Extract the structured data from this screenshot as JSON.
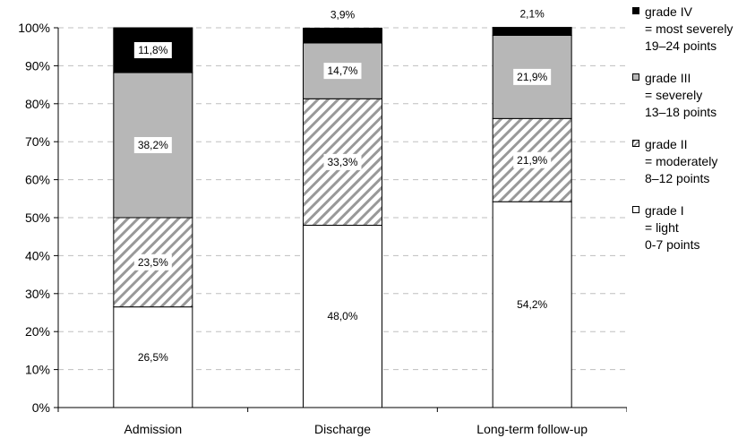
{
  "chart_data": {
    "type": "bar",
    "stacked": true,
    "categories": [
      "Admission",
      "Discharge",
      "Long-term follow-up"
    ],
    "series": [
      {
        "name": "grade I",
        "values": [
          26.5,
          48.0,
          54.2
        ],
        "labels": [
          "26,5%",
          "48,0%",
          "54,2%"
        ],
        "fill": "white"
      },
      {
        "name": "grade II",
        "values": [
          23.5,
          33.3,
          21.9
        ],
        "labels": [
          "23,5%",
          "33,3%",
          "21,9%"
        ],
        "fill": "hatch"
      },
      {
        "name": "grade III",
        "values": [
          38.2,
          14.7,
          21.9
        ],
        "labels": [
          "38,2%",
          "14,7%",
          "21,9%"
        ],
        "fill": "gray"
      },
      {
        "name": "grade IV",
        "values": [
          11.8,
          3.9,
          2.1
        ],
        "labels": [
          "11,8%",
          "3,9%",
          "2,1%"
        ],
        "fill": "black"
      }
    ],
    "y_ticks": [
      "0%",
      "10%",
      "20%",
      "30%",
      "40%",
      "50%",
      "60%",
      "70%",
      "80%",
      "90%",
      "100%"
    ],
    "ylim": [
      0,
      100
    ],
    "grid": "horizontal dashed",
    "legend_position": "right",
    "legend": [
      {
        "key": "grade_iv",
        "fill": "black",
        "lines": [
          "grade IV",
          "= most severely",
          "19–24 points"
        ]
      },
      {
        "key": "grade_iii",
        "fill": "gray",
        "lines": [
          "grade III",
          "= severely",
          "13–18 points"
        ]
      },
      {
        "key": "grade_ii",
        "fill": "hatch",
        "lines": [
          "grade II",
          "= moderately",
          "8–12 points"
        ]
      },
      {
        "key": "grade_i",
        "fill": "white",
        "lines": [
          "grade I",
          "= light",
          "0-7 points"
        ]
      }
    ],
    "colors": {
      "black": "#000000",
      "gray": "#b7b7b7",
      "white": "#ffffff",
      "hatch": "#999999",
      "grid": "#bfbfbf"
    }
  }
}
